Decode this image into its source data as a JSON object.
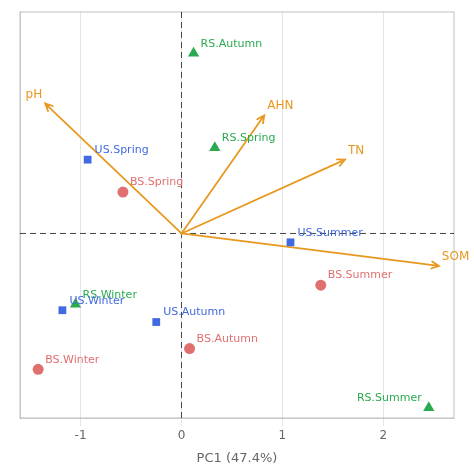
{
  "chart_data": {
    "type": "scatter",
    "xlabel": "PC1 (47.4%)",
    "xlim": [
      -1.6,
      2.7
    ],
    "ylim": [
      -1.25,
      1.5
    ],
    "xticks": [
      -1,
      0,
      1,
      2
    ],
    "yticks": [],
    "grid": true,
    "tick_labels": "x",
    "origin": [
      0,
      0
    ],
    "series": [
      {
        "color": "#2aaa50",
        "marker": "triangle",
        "labels": [
          "RS.Autumn",
          "RS.Spring",
          "RS.Winter",
          "RS.Summer"
        ],
        "x": [
          0.12,
          0.33,
          -1.05,
          2.45
        ],
        "y": [
          1.22,
          0.58,
          -0.48,
          -1.18
        ]
      },
      {
        "color": "#4169e1",
        "marker": "square",
        "labels": [
          "US.Spring",
          "US.Summer",
          "US.Winter",
          "US.Autumn"
        ],
        "x": [
          -0.93,
          1.08,
          -1.18,
          -0.25
        ],
        "y": [
          0.5,
          -0.06,
          -0.52,
          -0.6
        ]
      },
      {
        "color": "#e07070",
        "marker": "circle",
        "labels": [
          "BS.Spring",
          "BS.Summer",
          "BS.Winter",
          "BS.Autumn"
        ],
        "x": [
          -0.58,
          1.38,
          -1.42,
          0.08
        ],
        "y": [
          0.28,
          -0.35,
          -0.92,
          -0.78
        ]
      }
    ],
    "arrow_color": "#E8981E",
    "arrows": [
      {
        "label": "pH",
        "x": -1.35,
        "y": 0.88
      },
      {
        "label": "AHN",
        "x": 0.82,
        "y": 0.8
      },
      {
        "label": "TN",
        "x": 1.62,
        "y": 0.5
      },
      {
        "label": "SOM",
        "x": 2.55,
        "y": -0.22
      }
    ]
  }
}
